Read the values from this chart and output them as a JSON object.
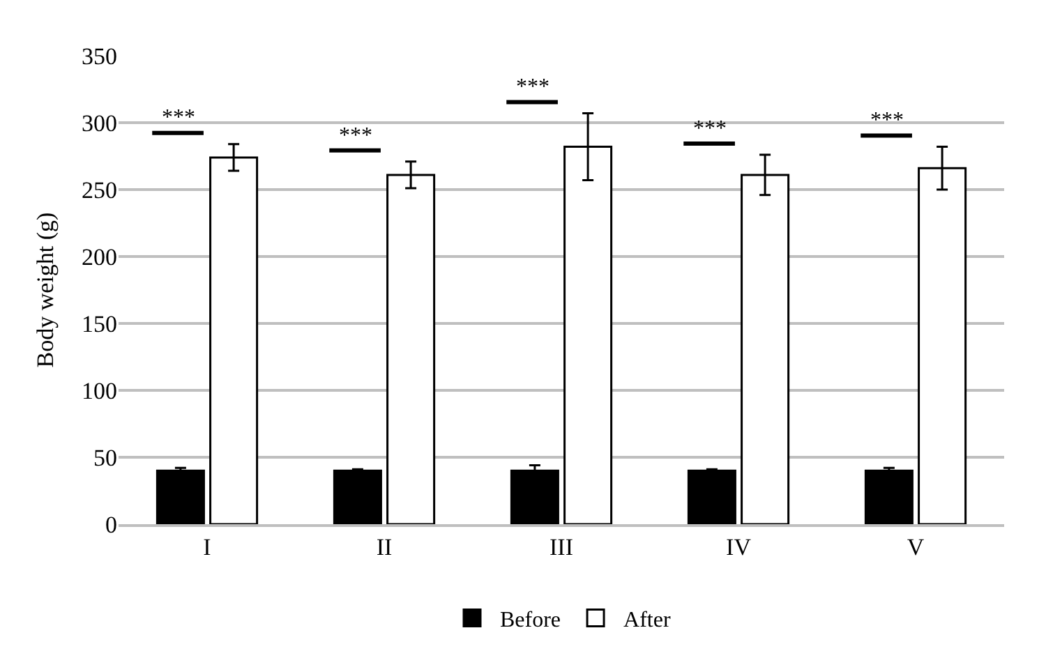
{
  "chart_data": {
    "type": "bar",
    "ylabel": "Body weight (g)",
    "categories": [
      "I",
      "II",
      "III",
      "IV",
      "V"
    ],
    "series": [
      {
        "name": "Before",
        "color": "#000000",
        "values": [
          40,
          40,
          40,
          40,
          40
        ],
        "errors": [
          2,
          1,
          4,
          1,
          2
        ]
      },
      {
        "name": "After",
        "color": "#ffffff",
        "values": [
          274,
          261,
          282,
          261,
          266
        ],
        "errors": [
          10,
          10,
          25,
          15,
          16
        ]
      }
    ],
    "ylim": [
      0,
      350
    ],
    "yticks": [
      0,
      50,
      100,
      150,
      200,
      250,
      300,
      350
    ],
    "grid": "y",
    "legend": "bottom",
    "annotations": [
      "***",
      "***",
      "***",
      "***",
      "***"
    ]
  }
}
